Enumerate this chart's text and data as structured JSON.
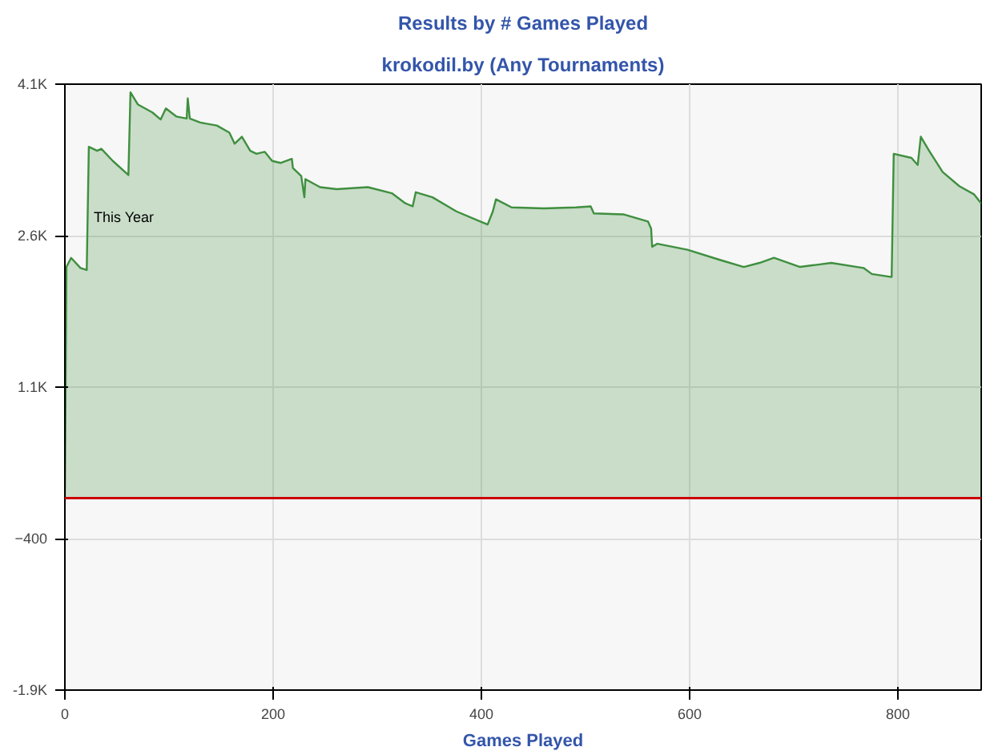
{
  "chart_data": {
    "type": "area",
    "title": "Results by # Games Played",
    "subtitle": "krokodil.by (Any Tournaments)",
    "xlabel": "Games Played",
    "x": [
      0,
      1.5,
      6,
      15,
      21,
      23,
      31,
      35,
      46,
      61,
      63,
      70,
      84,
      92,
      97,
      107,
      117,
      118,
      120,
      130,
      146,
      158,
      163,
      170,
      178,
      184,
      192,
      199,
      207,
      218,
      219,
      227,
      230,
      231,
      245,
      261,
      291,
      314,
      327,
      334,
      337,
      353,
      376,
      399,
      406,
      411,
      414,
      429,
      460,
      491,
      505,
      508,
      537,
      560,
      563,
      564,
      569,
      598,
      629,
      652,
      667,
      681,
      706,
      736,
      767,
      775,
      794,
      796,
      813,
      819,
      822,
      830,
      843,
      859,
      873,
      880
    ],
    "series": [
      {
        "color": "#3f8f3f",
        "values": [
          0,
          2290,
          2380,
          2280,
          2260,
          3480,
          3440,
          3460,
          3340,
          3200,
          4020,
          3900,
          3820,
          3750,
          3860,
          3780,
          3760,
          3960,
          3760,
          3720,
          3690,
          3620,
          3510,
          3580,
          3440,
          3410,
          3430,
          3340,
          3320,
          3360,
          3270,
          3190,
          2980,
          3160,
          3080,
          3060,
          3080,
          3020,
          2920,
          2890,
          3030,
          2980,
          2840,
          2740,
          2710,
          2840,
          2960,
          2880,
          2870,
          2880,
          2890,
          2820,
          2810,
          2740,
          2670,
          2490,
          2520,
          2460,
          2360,
          2290,
          2330,
          2380,
          2290,
          2330,
          2280,
          2220,
          2190,
          3410,
          3370,
          3300,
          3580,
          3440,
          3230,
          3090,
          3010,
          2920
        ]
      }
    ],
    "xlim": [
      0,
      880
    ],
    "ylim": [
      -1900,
      4100
    ],
    "xticks": [
      0,
      200,
      400,
      600,
      800
    ],
    "yticks": [
      {
        "value": -1900,
        "label": "-1.9K"
      },
      -400,
      {
        "value": 1100,
        "label": "1.1K"
      },
      {
        "value": 2600,
        "label": "2.6K"
      },
      {
        "value": 4100,
        "label": "4.1K"
      }
    ],
    "ref_lines": [
      {
        "axis": "y",
        "value": 0,
        "color": "#cc0000"
      }
    ],
    "annotations": [
      "This Year"
    ],
    "grid": true
  }
}
